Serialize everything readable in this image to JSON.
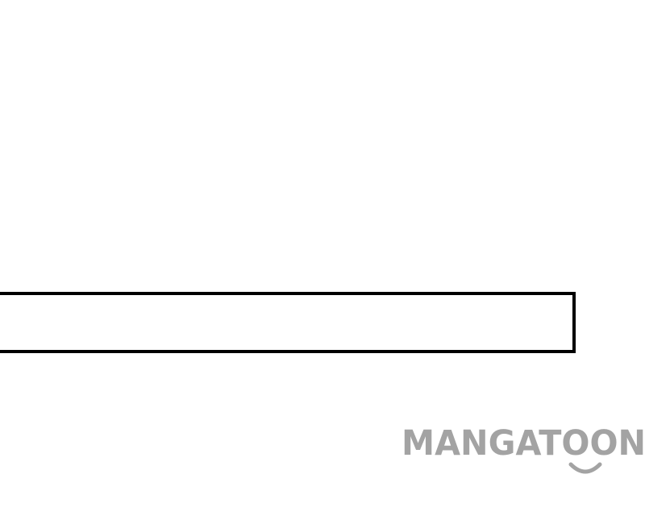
{
  "watermark": {
    "text": "MANGATOON",
    "color": "#a3a3a3",
    "icon": "smile-icon"
  },
  "panel": {
    "border_color": "#000000",
    "fill": "#ffffff"
  }
}
